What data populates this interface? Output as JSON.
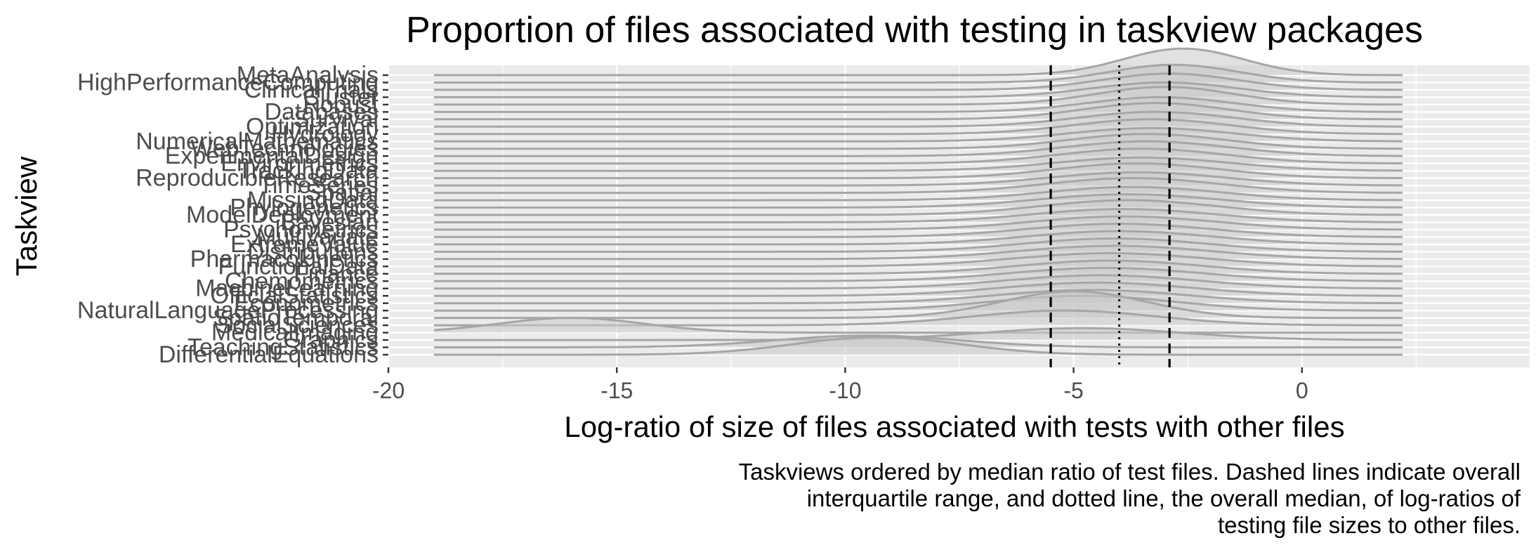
{
  "chart_data": {
    "type": "ridgeline",
    "title": "Proportion of files associated with testing in taskview packages",
    "xlabel": "Log-ratio of size of files associated with tests with other files",
    "ylabel": "Taskview",
    "caption": [
      "Taskviews ordered by median ratio of test files. Dashed lines indicate overall",
      "interquartile range, and dotted line, the overall median, of log-ratios of",
      "testing file sizes to other files."
    ],
    "xlim": [
      -20,
      5
    ],
    "x_ticks": [
      -20,
      -15,
      -10,
      -5,
      0
    ],
    "x_tick_labels": [
      "-20",
      "-15",
      "-10",
      "-5",
      "0"
    ],
    "x_range_of_densities": [
      -19,
      2.2
    ],
    "reference_lines": {
      "quartile_1": -5.5,
      "median": -4.0,
      "quartile_3": -2.9
    },
    "taskviews": [
      {
        "name": "MetaAnalysis",
        "peak": -2.6,
        "spread": 1.3,
        "height": 0.9
      },
      {
        "name": "HighPerformanceComputing",
        "peak": -2.8,
        "spread": 1.4,
        "height": 0.6
      },
      {
        "name": "ClinicalTrials",
        "peak": -2.9,
        "spread": 1.5,
        "height": 0.55
      },
      {
        "name": "Cluster",
        "peak": -3.0,
        "spread": 1.6,
        "height": 0.5
      },
      {
        "name": "Robust",
        "peak": -3.0,
        "spread": 1.5,
        "height": 0.6
      },
      {
        "name": "Databases",
        "peak": -3.1,
        "spread": 1.6,
        "height": 0.5
      },
      {
        "name": "Survival",
        "peak": -3.2,
        "spread": 1.6,
        "height": 0.55
      },
      {
        "name": "Optimization",
        "peak": -3.2,
        "spread": 1.7,
        "height": 0.5
      },
      {
        "name": "Hydrology",
        "peak": -3.3,
        "spread": 1.7,
        "height": 0.5
      },
      {
        "name": "NumericalMathematics",
        "peak": -3.3,
        "spread": 1.8,
        "height": 0.45
      },
      {
        "name": "WebTechnologies",
        "peak": -3.4,
        "spread": 1.7,
        "height": 0.5
      },
      {
        "name": "ExperimentalDesign",
        "peak": -3.4,
        "spread": 1.8,
        "height": 0.5
      },
      {
        "name": "Environmetrics",
        "peak": -3.5,
        "spread": 1.8,
        "height": 0.5
      },
      {
        "name": "TrackingData",
        "peak": -3.5,
        "spread": 1.9,
        "height": 0.45
      },
      {
        "name": "ReproducibleResearch",
        "peak": -3.6,
        "spread": 1.8,
        "height": 0.5
      },
      {
        "name": "TimeSeries",
        "peak": -3.6,
        "spread": 1.9,
        "height": 0.45
      },
      {
        "name": "Spatial",
        "peak": -3.7,
        "spread": 1.9,
        "height": 0.5
      },
      {
        "name": "MissingData",
        "peak": -3.7,
        "spread": 1.9,
        "height": 0.45
      },
      {
        "name": "Phylogenetics",
        "peak": -3.8,
        "spread": 2.0,
        "height": 0.45
      },
      {
        "name": "ModelDeployment",
        "peak": -3.8,
        "spread": 1.9,
        "height": 0.5
      },
      {
        "name": "Bayesian",
        "peak": -3.9,
        "spread": 2.0,
        "height": 0.45
      },
      {
        "name": "Psychometrics",
        "peak": -3.9,
        "spread": 2.0,
        "height": 0.45
      },
      {
        "name": "Multivariate",
        "peak": -4.0,
        "spread": 2.0,
        "height": 0.45
      },
      {
        "name": "ExtremeValue",
        "peak": -4.0,
        "spread": 2.0,
        "height": 0.45
      },
      {
        "name": "Distributions",
        "peak": -4.1,
        "spread": 2.0,
        "height": 0.45
      },
      {
        "name": "Pharmacokinetics",
        "peak": -4.1,
        "spread": 2.1,
        "height": 0.45
      },
      {
        "name": "FunctionalData",
        "peak": -4.2,
        "spread": 2.1,
        "height": 0.45
      },
      {
        "name": "Finance",
        "peak": -4.2,
        "spread": 2.0,
        "height": 0.45
      },
      {
        "name": "Chemometrics",
        "peak": -4.3,
        "spread": 2.1,
        "height": 0.45
      },
      {
        "name": "MachineLearning",
        "peak": -4.4,
        "spread": 2.1,
        "height": 0.45
      },
      {
        "name": "OfficialStatistics",
        "peak": -4.5,
        "spread": 2.1,
        "height": 0.45
      },
      {
        "name": "Econometrics",
        "peak": -4.6,
        "spread": 2.1,
        "height": 0.45
      },
      {
        "name": "NaturalLanguageProcessing",
        "peak": -4.8,
        "spread": 2.0,
        "height": 0.5
      },
      {
        "name": "SpatioTemporal",
        "peak": -5.0,
        "spread": 1.6,
        "height": 0.9
      },
      {
        "name": "SocialSciences",
        "peak": -5.2,
        "spread": 2.0,
        "height": 0.5
      },
      {
        "name": "MedicalImaging",
        "peak": -16.0,
        "spread": 1.6,
        "height": 0.5
      },
      {
        "name": "Graphics",
        "peak": -4.8,
        "spread": 2.2,
        "height": 0.4
      },
      {
        "name": "TeachingStatistics",
        "peak": -9.5,
        "spread": 2.0,
        "height": 0.4
      },
      {
        "name": "DifferentialEquations",
        "peak": -9.3,
        "spread": 1.8,
        "height": 0.6
      }
    ],
    "grid": true,
    "legend": "none"
  }
}
